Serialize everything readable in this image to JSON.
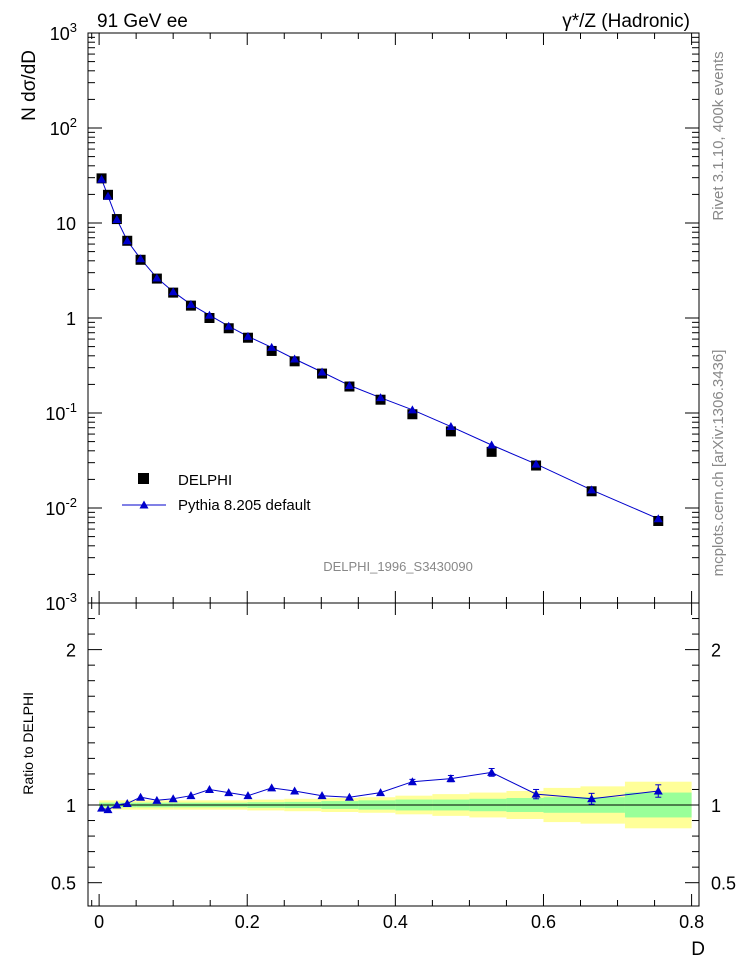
{
  "header": {
    "left_title": "91 GeV ee",
    "right_title": "γ*/Z (Hadronic)"
  },
  "side_text": {
    "rivet": "Rivet 3.1.10,  400k events",
    "mcplots": "mcplots.cern.ch [arXiv:1306.3436]"
  },
  "watermark": "DELPHI_1996_S3430090",
  "colors": {
    "data": "#000000",
    "mc": "#0000cc",
    "band_inner": "#99ff99",
    "band_outer": "#ffff99"
  },
  "chart_data": [
    {
      "type": "scatter",
      "title": "",
      "xlabel": "D",
      "ylabel": "N dσ/dD",
      "yscale": "log",
      "xlim": [
        -0.015,
        0.81
      ],
      "ylim": [
        0.001,
        1000
      ],
      "ytick_labels": [
        "10^-3",
        "10^-2",
        "10^-1",
        "1",
        "10",
        "10^2",
        "10^3"
      ],
      "legend": {
        "position": "bottom-left",
        "entries": [
          "DELPHI",
          "Pythia 8.205 default"
        ]
      },
      "x": [
        0.0033,
        0.012,
        0.024,
        0.038,
        0.056,
        0.078,
        0.1,
        0.124,
        0.149,
        0.175,
        0.201,
        0.233,
        0.264,
        0.301,
        0.338,
        0.38,
        0.423,
        0.475,
        0.53,
        0.59,
        0.665,
        0.755
      ],
      "series": [
        {
          "name": "DELPHI",
          "values": [
            29.5,
            19.8,
            11.0,
            6.5,
            4.1,
            2.6,
            1.85,
            1.35,
            1.0,
            0.78,
            0.62,
            0.45,
            0.35,
            0.26,
            0.19,
            0.138,
            0.097,
            0.064,
            0.039,
            0.028,
            0.015,
            0.0073
          ]
        },
        {
          "name": "Pythia 8.205 default",
          "values": [
            28.9,
            19.2,
            10.9,
            6.5,
            4.2,
            2.64,
            1.89,
            1.39,
            1.07,
            0.82,
            0.64,
            0.49,
            0.37,
            0.27,
            0.195,
            0.145,
            0.108,
            0.072,
            0.046,
            0.029,
            0.0155,
            0.0077
          ]
        }
      ]
    },
    {
      "type": "line",
      "title": "",
      "xlabel": "D",
      "ylabel": "Ratio to DELPHI",
      "xlim": [
        -0.015,
        0.81
      ],
      "ylim": [
        0.35,
        2.3
      ],
      "yticks": [
        0.5,
        1,
        2
      ],
      "ytick_labels": [
        "0.5",
        "1",
        "2"
      ],
      "xticks": [
        0,
        0.2,
        0.4,
        0.6,
        0.8
      ],
      "xtick_labels": [
        "0",
        "0.2",
        "0.4",
        "0.6",
        "0.8"
      ],
      "x": [
        0.0033,
        0.012,
        0.024,
        0.038,
        0.056,
        0.078,
        0.1,
        0.124,
        0.149,
        0.175,
        0.201,
        0.233,
        0.264,
        0.301,
        0.338,
        0.38,
        0.423,
        0.475,
        0.53,
        0.59,
        0.665,
        0.755
      ],
      "series": [
        {
          "name": "Pythia 8.205 default",
          "values": [
            0.98,
            0.97,
            1.0,
            1.01,
            1.05,
            1.03,
            1.04,
            1.06,
            1.1,
            1.08,
            1.06,
            1.11,
            1.09,
            1.06,
            1.05,
            1.08,
            1.15,
            1.17,
            1.21,
            1.07,
            1.04,
            1.09
          ],
          "errors": [
            0.005,
            0.005,
            0.005,
            0.006,
            0.006,
            0.006,
            0.007,
            0.007,
            0.008,
            0.008,
            0.008,
            0.009,
            0.009,
            0.01,
            0.01,
            0.012,
            0.015,
            0.02,
            0.025,
            0.03,
            0.035,
            0.04
          ]
        }
      ],
      "uncertainty_band": {
        "edges": [
          0,
          0.05,
          0.1,
          0.2,
          0.25,
          0.3,
          0.35,
          0.4,
          0.45,
          0.5,
          0.55,
          0.6,
          0.65,
          0.71,
          0.8
        ],
        "inner_halfwidth": [
          0.015,
          0.015,
          0.015,
          0.018,
          0.02,
          0.025,
          0.03,
          0.035,
          0.035,
          0.04,
          0.045,
          0.05,
          0.05,
          0.08
        ],
        "outer_halfwidth": [
          0.03,
          0.03,
          0.03,
          0.035,
          0.04,
          0.045,
          0.05,
          0.06,
          0.07,
          0.08,
          0.09,
          0.11,
          0.12,
          0.15
        ]
      }
    }
  ]
}
